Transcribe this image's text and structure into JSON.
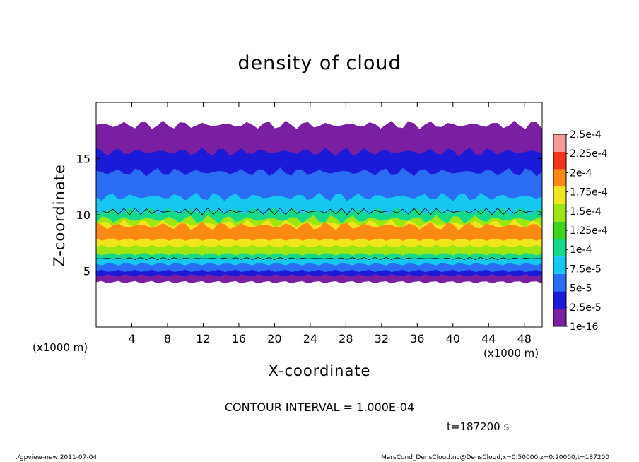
{
  "chart_data": {
    "type": "heatmap",
    "title": "density of cloud",
    "xlabel": "X-coordinate",
    "ylabel": "Z-coordinate",
    "x_unit": "(x1000 m)",
    "xlim": [
      0,
      50
    ],
    "ylim": [
      0,
      20
    ],
    "x_ticks": [
      4,
      8,
      12,
      16,
      20,
      24,
      28,
      32,
      36,
      40,
      44,
      48
    ],
    "y_ticks": [
      5,
      10,
      15
    ],
    "colorbar_labels": [
      "2.5e-4",
      "2.25e-4",
      "2e-4",
      "1.75e-4",
      "1.5e-4",
      "1.25e-4",
      "1e-4",
      "7.5e-5",
      "5e-5",
      "2.5e-5",
      "1e-16"
    ],
    "colorbar_levels": [
      1e-16,
      2.5e-05,
      5e-05,
      7.5e-05,
      0.0001,
      0.000125,
      0.00015,
      0.000175,
      0.0002,
      0.000225,
      0.00025
    ],
    "colors": [
      "#7a1fa2",
      "#1a1ad8",
      "#2a6cf2",
      "#16c8f0",
      "#14d88a",
      "#3ed41e",
      "#9ee612",
      "#f0e61e",
      "#fa8a14",
      "#f2341e",
      "#f49a9a"
    ],
    "cloud_layers": [
      {
        "level": "1e-16",
        "z_bottom": 4.0,
        "z_top": 18.0
      },
      {
        "level": "2.5e-5",
        "z_bottom": 4.6,
        "z_top": 15.6
      },
      {
        "level": "5e-5",
        "z_bottom": 5.0,
        "z_top": 13.8
      },
      {
        "level": "7.5e-5",
        "z_bottom": 5.6,
        "z_top": 11.6
      },
      {
        "level": "1e-4",
        "z_bottom": 6.1,
        "z_top": 10.3
      },
      {
        "level": "1.5e-4",
        "z_bottom": 6.5,
        "z_top": 9.6
      },
      {
        "level": "1.75e-4",
        "z_bottom": 7.2,
        "z_top": 9.2
      },
      {
        "level": "2e-4",
        "z_bottom": 7.8,
        "z_top": 9.0
      }
    ],
    "contour_interval_label": "CONTOUR INTERVAL = 1.000E-04",
    "time_label": "t=187200 s"
  },
  "footer": {
    "left": "./gpview-new  2011-07-04",
    "right": "MarsCond_DensCloud.nc@DensCloud,x=0:50000,z=0:20000,t=187200"
  }
}
